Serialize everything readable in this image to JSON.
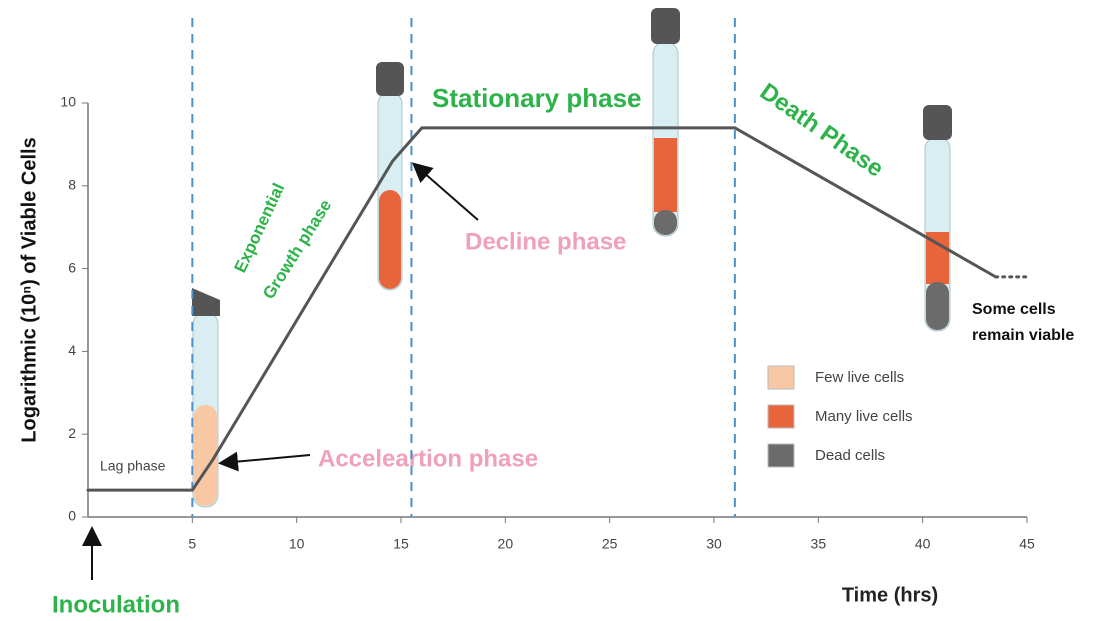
{
  "chart_data": {
    "type": "line",
    "y_label": "Logarithmic (10ⁿ) of Viable Cells",
    "x_label": "Time (hrs)",
    "xlim": [
      0,
      45
    ],
    "xticks": [
      5,
      10,
      15,
      20,
      25,
      30,
      35,
      40,
      45
    ],
    "ylim": [
      0,
      10
    ],
    "yticks": [
      0,
      2,
      4,
      6,
      8,
      10
    ],
    "grid": false,
    "series": [
      {
        "color": "#555555",
        "style": "solid",
        "x": [
          0,
          5,
          6,
          14.6,
          16,
          31,
          43.5
        ],
        "values": [
          0.65,
          0.65,
          1.4,
          8.6,
          9.4,
          9.4,
          5.8
        ]
      },
      {
        "color": "#555555",
        "style": "dotted",
        "x": [
          43.5,
          45
        ],
        "values": [
          5.8,
          5.8
        ]
      }
    ],
    "phase_lines": {
      "color": "#4a90d0",
      "x": [
        5,
        15.5,
        31
      ]
    },
    "annotations": {
      "lag": "Lag phase",
      "exponential": [
        "Exponential",
        "Growth phase"
      ],
      "acceleration": "Acceleartion phase",
      "stationary": "Stationary phase",
      "decline": "Decline phase",
      "death": "Death Phase",
      "viable": [
        "Some cells",
        "remain viable"
      ],
      "inoculation": "Inoculation"
    },
    "legend": [
      {
        "label": "Few live cells",
        "color": "#f8c8a5"
      },
      {
        "label": "Many live cells",
        "color": "#e8643a"
      },
      {
        "label": "Dead cells",
        "color": "#6b6b6b"
      }
    ]
  }
}
